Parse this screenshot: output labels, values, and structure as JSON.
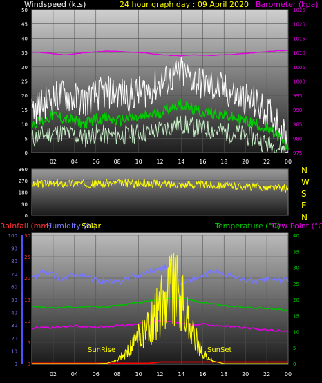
{
  "header": {
    "wind_label": "Windspeed (kts)",
    "title": "24 hour graph day : 09 April 2020",
    "baro_label": "Barometer (kpa)"
  },
  "compass": [
    "N",
    "W",
    "S",
    "E",
    "N"
  ],
  "bottom_labels": {
    "rainfall": "Rainfall (mm)",
    "humidity": "Humidity (%)",
    "solar": "Solar",
    "temperature": "Temperature (°C)",
    "dewpoint": "Dew Point (°C)"
  },
  "sun_labels": {
    "sunrise": "SunRise",
    "sunset": "SunSet"
  },
  "colors": {
    "wind_gust": "#ffffff",
    "wind_avg": "#00cc00",
    "wind_min": "#c8f0c8",
    "barometer": "#e000e0",
    "direction": "#ffff00",
    "humidity": "#7878ff",
    "temperature": "#00c000",
    "dewpoint": "#e000e0",
    "solar": "#ffff00",
    "rainfall": "#ff0000"
  },
  "chart_data": [
    {
      "type": "line",
      "name": "wind-barometer",
      "x_ticks": [
        "02",
        "04",
        "06",
        "08",
        "10",
        "12",
        "14",
        "16",
        "18",
        "20",
        "22",
        "00"
      ],
      "ylim_left": [
        0,
        50
      ],
      "y_ticks_left": [
        "0",
        "5",
        "10",
        "15",
        "20",
        "25",
        "30",
        "35",
        "40",
        "45",
        "50"
      ],
      "ylim_right": [
        975,
        1025
      ],
      "y_ticks_right": [
        "975",
        "980",
        "985",
        "990",
        "995",
        "1000",
        "1005",
        "1010",
        "1015",
        "1020",
        "1025"
      ],
      "hours": [
        0,
        1,
        2,
        3,
        4,
        5,
        6,
        7,
        8,
        9,
        10,
        11,
        12,
        13,
        14,
        15,
        16,
        17,
        18,
        19,
        20,
        21,
        22,
        23,
        24
      ],
      "series": [
        {
          "key": "gust",
          "values": [
            15,
            17,
            19,
            20,
            19,
            18,
            20,
            21,
            21,
            20,
            21,
            22,
            24,
            26,
            28,
            26,
            24,
            23,
            22,
            20,
            19,
            17,
            14,
            11,
            3
          ]
        },
        {
          "key": "avg",
          "values": [
            10,
            11,
            13,
            12,
            11,
            10,
            12,
            12,
            11,
            12,
            12,
            13,
            14,
            16,
            17,
            15,
            14,
            14,
            13,
            12,
            11,
            10,
            8,
            6,
            1
          ]
        },
        {
          "key": "min",
          "values": [
            5,
            6,
            7,
            7,
            6,
            5,
            7,
            6,
            6,
            6,
            7,
            7,
            8,
            9,
            10,
            9,
            8,
            8,
            7,
            7,
            6,
            5,
            3,
            2,
            0
          ]
        },
        {
          "key": "barometer",
          "values": [
            1010.2,
            1010.0,
            1009.6,
            1009.2,
            1009.5,
            1010.0,
            1010.2,
            1010.5,
            1010.4,
            1010.2,
            1010.0,
            1009.7,
            1009.3,
            1009.0,
            1008.9,
            1009.2,
            1009.1,
            1009.0,
            1009.2,
            1009.4,
            1009.7,
            1010.0,
            1010.3,
            1010.6,
            1010.7
          ]
        }
      ]
    },
    {
      "type": "line",
      "name": "wind-direction",
      "ylim": [
        0,
        360
      ],
      "y_ticks": [
        "0",
        "90",
        "180",
        "270",
        "360"
      ],
      "hours": [
        0,
        2,
        4,
        6,
        8,
        10,
        12,
        14,
        16,
        18,
        20,
        22,
        24
      ],
      "values": [
        250,
        245,
        250,
        245,
        250,
        248,
        245,
        240,
        238,
        232,
        225,
        215,
        210
      ]
    },
    {
      "type": "line",
      "name": "rain-humidity-temp",
      "x_ticks": [
        "02",
        "04",
        "06",
        "08",
        "10",
        "12",
        "14",
        "16",
        "18",
        "20",
        "22",
        "00"
      ],
      "ylim_rain": [
        0,
        30
      ],
      "y_ticks_rain": [
        "0",
        "5",
        "10",
        "15",
        "20",
        "25",
        "30"
      ],
      "ylim_humidity": [
        0,
        100
      ],
      "y_ticks_humidity": [
        "0",
        "10",
        "20",
        "30",
        "40",
        "50",
        "60",
        "70",
        "80",
        "90",
        "100"
      ],
      "ylim_temp": [
        0,
        40
      ],
      "y_ticks_temp": [
        "0",
        "5",
        "10",
        "15",
        "20",
        "25",
        "30",
        "35",
        "40"
      ],
      "hours": [
        0,
        1,
        2,
        3,
        4,
        5,
        6,
        7,
        8,
        9,
        10,
        11,
        12,
        13,
        14,
        15,
        16,
        17,
        18,
        19,
        20,
        21,
        22,
        23,
        24
      ],
      "series": [
        {
          "key": "humidity",
          "values": [
            66,
            72,
            69,
            66,
            70,
            68,
            65,
            64,
            63,
            67,
            69,
            72,
            74,
            76,
            62,
            66,
            68,
            72,
            70,
            67,
            65,
            64,
            66,
            65,
            65
          ]
        },
        {
          "key": "temperature",
          "values": [
            17.8,
            17.6,
            17.5,
            17.5,
            17.6,
            17.7,
            17.7,
            17.8,
            18.0,
            18.5,
            19.0,
            19.5,
            20.0,
            20.5,
            20.3,
            19.8,
            19.0,
            18.5,
            18.0,
            17.8,
            17.6,
            17.4,
            17.2,
            17.0,
            16.5
          ]
        },
        {
          "key": "dewpoint",
          "values": [
            11.0,
            11.5,
            11.2,
            11.5,
            11.8,
            11.5,
            11.3,
            11.6,
            11.8,
            12.0,
            12.5,
            13.0,
            13.5,
            13.0,
            12.5,
            12.0,
            12.3,
            12.0,
            11.8,
            11.5,
            11.0,
            10.8,
            10.5,
            10.3,
            10.0
          ]
        },
        {
          "key": "rainfall",
          "values": [
            0.1,
            0.1,
            0.1,
            0.1,
            0.1,
            0.1,
            0.1,
            0.1,
            0.1,
            0.1,
            0.1,
            0.1,
            0.4,
            0.4,
            0.4,
            0.4,
            0.4,
            0.4,
            0.4,
            0.4,
            0.4,
            0.4,
            0.4,
            0.4,
            0.4
          ]
        },
        {
          "key": "solar",
          "values": [
            0,
            0,
            0,
            0,
            0,
            0,
            0,
            0.2,
            3,
            12,
            25,
            35,
            55,
            80,
            60,
            30,
            10,
            2,
            0,
            0,
            0,
            0,
            0,
            0,
            0
          ]
        }
      ]
    }
  ]
}
